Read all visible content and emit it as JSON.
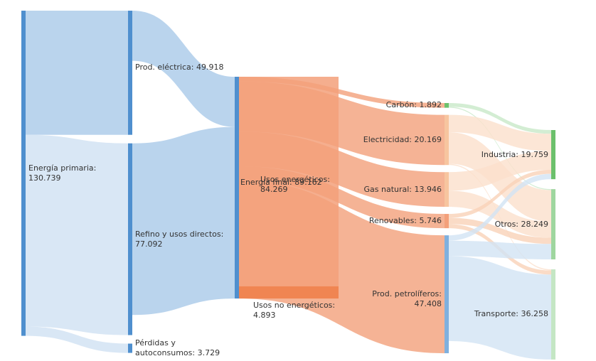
{
  "chart_data": {
    "type": "sankey",
    "nodes": [
      {
        "label": "Energía primaria: 130.739",
        "value": 130.739,
        "column": 0,
        "color": "#4f8fce"
      },
      {
        "label": "Prod. eléctrica: 49.918",
        "value": 49.918,
        "column": 1,
        "color": "#4f8fce"
      },
      {
        "label": "Refino y usos directos: 77.092",
        "value": 77.092,
        "column": 1,
        "color": "#4f8fce"
      },
      {
        "label": "Pérdidas y autoconsumos: 3.729",
        "value": 3.729,
        "column": 1,
        "color": "#4f8fce"
      },
      {
        "label": "Energía final: 89.162",
        "value": 89.162,
        "column": 2,
        "color": "#4f8fce",
        "parts": [
          {
            "label": "Usos energéticos: 84.269",
            "value": 84.269,
            "color": "#f3a07a"
          },
          {
            "label": "Usos no energéticos: 4.893",
            "value": 4.893,
            "color": "#ef7d46"
          }
        ]
      },
      {
        "label": "Carbón: 1.892",
        "value": 1.892,
        "column": 3,
        "color": "#6cc06c"
      },
      {
        "label": "Electricidad: 20.169",
        "value": 20.169,
        "column": 3,
        "color": "#f7c59f"
      },
      {
        "label": "Gas natural: 13.946",
        "value": 13.946,
        "column": 3,
        "color": "#f7c59f"
      },
      {
        "label": "Renovables: 5.746",
        "value": 5.746,
        "column": 3,
        "color": "#f3a07a"
      },
      {
        "label": "Prod. petrolíferos: 47.408",
        "value": 47.408,
        "column": 3,
        "color": "#7fb0de"
      },
      {
        "label": "Industria: 19.759",
        "value": 19.759,
        "column": 4,
        "color": "#6cc06c"
      },
      {
        "label": "Otros: 28.249",
        "value": 28.249,
        "column": 4,
        "color": "#9fd69f"
      },
      {
        "label": "Transporte: 36.258",
        "value": 36.258,
        "column": 4,
        "color": "#c4e6c4"
      }
    ],
    "links": [
      {
        "source": 0,
        "target": 1,
        "value": 49.918,
        "color": "#a9c9e8"
      },
      {
        "source": 0,
        "target": 2,
        "value": 77.092,
        "color": "#cfe1f2"
      },
      {
        "source": 0,
        "target": 3,
        "value": 3.729,
        "color": "#cfe1f2"
      },
      {
        "source": 1,
        "target": 4,
        "value": 20.169,
        "color": "#a9c9e8"
      },
      {
        "source": 2,
        "target": 4,
        "value": 68.993,
        "color": "#a9c9e8"
      },
      {
        "source": 4,
        "target": 5,
        "value": 1.892,
        "color": "#f3a07a"
      },
      {
        "source": 4,
        "target": 6,
        "value": 20.169,
        "color": "#f3a07a"
      },
      {
        "source": 4,
        "target": 7,
        "value": 13.946,
        "color": "#f3a07a"
      },
      {
        "source": 4,
        "target": 8,
        "value": 5.746,
        "color": "#f3a07a"
      },
      {
        "source": 4,
        "target": 9,
        "value": 47.408,
        "color": "#f3a07a"
      },
      {
        "source": 5,
        "target": 10,
        "value": 1.5,
        "color": "#c8e8c8"
      },
      {
        "source": 5,
        "target": 11,
        "value": 0.392,
        "color": "#c8e8c8"
      },
      {
        "source": 6,
        "target": 10,
        "value": 7,
        "color": "#fbe0cc"
      },
      {
        "source": 6,
        "target": 11,
        "value": 12.7,
        "color": "#fbe0cc"
      },
      {
        "source": 6,
        "target": 12,
        "value": 0.469,
        "color": "#fbe0cc"
      },
      {
        "source": 7,
        "target": 10,
        "value": 7.5,
        "color": "#fbe0cc"
      },
      {
        "source": 7,
        "target": 11,
        "value": 6.446,
        "color": "#fbe0cc"
      },
      {
        "source": 8,
        "target": 10,
        "value": 1.6,
        "color": "#f9d2b8"
      },
      {
        "source": 8,
        "target": 11,
        "value": 2.5,
        "color": "#f9d2b8"
      },
      {
        "source": 8,
        "target": 12,
        "value": 1.646,
        "color": "#f9d2b8"
      },
      {
        "source": 9,
        "target": 10,
        "value": 2.159,
        "color": "#d2e4f4"
      },
      {
        "source": 9,
        "target": 11,
        "value": 6.211,
        "color": "#d2e4f4"
      },
      {
        "source": 9,
        "target": 12,
        "value": 34.143,
        "color": "#d2e4f4"
      }
    ]
  }
}
